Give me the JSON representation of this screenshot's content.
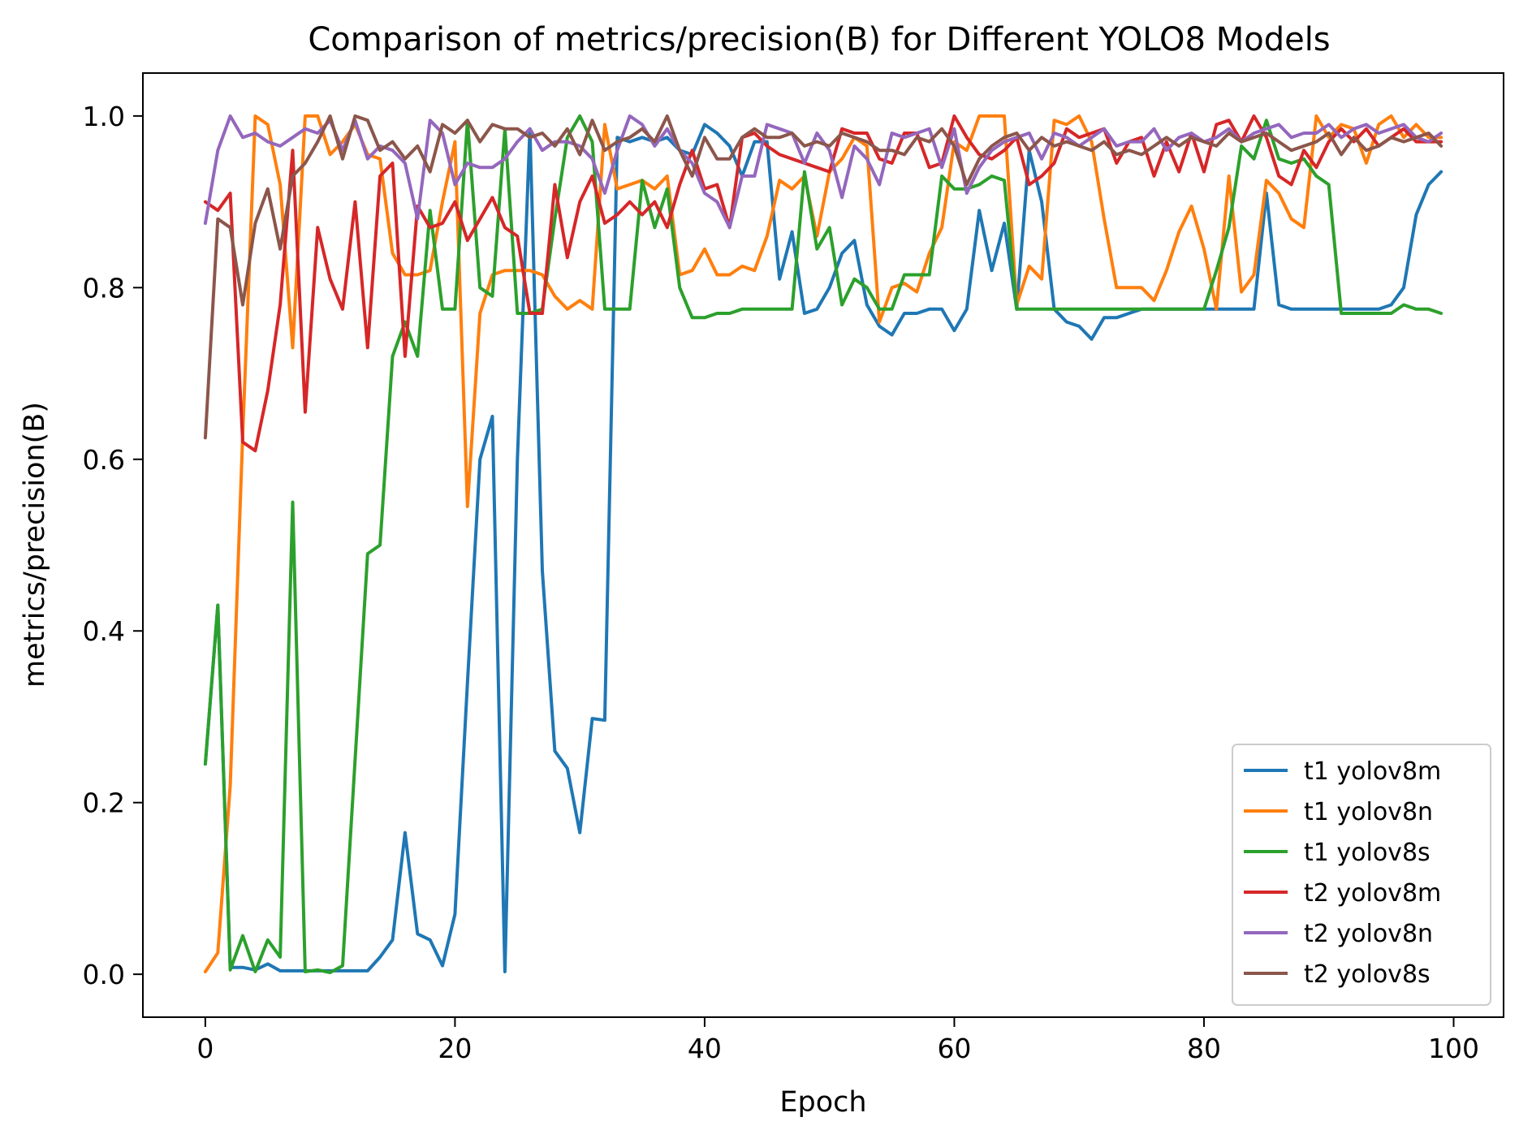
{
  "chart_data": {
    "type": "line",
    "title": "Comparison of metrics/precision(B) for Different YOLO8 Models",
    "xlabel": "Epoch",
    "ylabel": "metrics/precision(B)",
    "xlim": [
      -5,
      104
    ],
    "ylim": [
      -0.05,
      1.05
    ],
    "xticks": [
      0,
      20,
      40,
      60,
      80,
      100
    ],
    "xtick_labels": [
      "0",
      "20",
      "40",
      "60",
      "80",
      "100"
    ],
    "yticks": [
      0.0,
      0.2,
      0.4,
      0.6,
      0.8,
      1.0
    ],
    "ytick_labels": [
      "0.0",
      "0.2",
      "0.4",
      "0.6",
      "0.8",
      "1.0"
    ],
    "grid": false,
    "legend_position": "lower-right",
    "series": [
      {
        "name": "t1 yolov8m",
        "color": "#1f77b4",
        "x": [
          0,
          1,
          2,
          3,
          4,
          5,
          6,
          7,
          8,
          9,
          10,
          11,
          12,
          13,
          14,
          15,
          16,
          17,
          18,
          19,
          20,
          21,
          22,
          23,
          24,
          25,
          26,
          27,
          28,
          29,
          30,
          31,
          32,
          33,
          34,
          35,
          36,
          37,
          38,
          39,
          40,
          41,
          42,
          43,
          44,
          45,
          46,
          47,
          48,
          49,
          50,
          51,
          52,
          53,
          54,
          55,
          56,
          57,
          58,
          59,
          60,
          61,
          62,
          63,
          64,
          65,
          66,
          67,
          68,
          69,
          70,
          71,
          72,
          73,
          74,
          75,
          76,
          77,
          78,
          79,
          80,
          81,
          82,
          83,
          84,
          85,
          86,
          87,
          88,
          89,
          90,
          91,
          92,
          93,
          94,
          95,
          96,
          97,
          98,
          99
        ],
        "y": [
          0.245,
          0.43,
          0.008,
          0.008,
          0.005,
          0.012,
          0.004,
          0.004,
          0.004,
          0.004,
          0.004,
          0.004,
          0.004,
          0.004,
          0.02,
          0.04,
          0.165,
          0.047,
          0.04,
          0.01,
          0.07,
          0.34,
          0.6,
          0.65,
          0.003,
          0.6,
          0.985,
          0.47,
          0.26,
          0.24,
          0.165,
          0.298,
          0.296,
          0.975,
          0.97,
          0.975,
          0.97,
          0.975,
          0.96,
          0.955,
          0.99,
          0.98,
          0.965,
          0.93,
          0.97,
          0.97,
          0.81,
          0.865,
          0.77,
          0.775,
          0.8,
          0.84,
          0.855,
          0.78,
          0.755,
          0.745,
          0.77,
          0.77,
          0.775,
          0.775,
          0.75,
          0.775,
          0.89,
          0.82,
          0.875,
          0.775,
          0.96,
          0.9,
          0.775,
          0.76,
          0.755,
          0.74,
          0.765,
          0.765,
          0.77,
          0.775,
          0.775,
          0.775,
          0.775,
          0.775,
          0.775,
          0.775,
          0.775,
          0.775,
          0.775,
          0.91,
          0.78,
          0.775,
          0.775,
          0.775,
          0.775,
          0.775,
          0.775,
          0.775,
          0.775,
          0.78,
          0.8,
          0.885,
          0.92,
          0.935
        ]
      },
      {
        "name": "t1 yolov8n",
        "color": "#ff7f0e",
        "x": [
          0,
          1,
          2,
          3,
          4,
          5,
          6,
          7,
          8,
          9,
          10,
          11,
          12,
          13,
          14,
          15,
          16,
          17,
          18,
          19,
          20,
          21,
          22,
          23,
          24,
          25,
          26,
          27,
          28,
          29,
          30,
          31,
          32,
          33,
          34,
          35,
          36,
          37,
          38,
          39,
          40,
          41,
          42,
          43,
          44,
          45,
          46,
          47,
          48,
          49,
          50,
          51,
          52,
          53,
          54,
          55,
          56,
          57,
          58,
          59,
          60,
          61,
          62,
          63,
          64,
          65,
          66,
          67,
          68,
          69,
          70,
          71,
          72,
          73,
          74,
          75,
          76,
          77,
          78,
          79,
          80,
          81,
          82,
          83,
          84,
          85,
          86,
          87,
          88,
          89,
          90,
          91,
          92,
          93,
          94,
          95,
          96,
          97,
          98,
          99
        ],
        "y": [
          0.003,
          0.025,
          0.22,
          0.63,
          1.0,
          0.99,
          0.92,
          0.73,
          1.0,
          1.0,
          0.955,
          0.97,
          0.99,
          0.955,
          0.95,
          0.84,
          0.815,
          0.815,
          0.82,
          0.9,
          0.97,
          0.545,
          0.77,
          0.815,
          0.82,
          0.82,
          0.82,
          0.815,
          0.79,
          0.775,
          0.785,
          0.775,
          0.99,
          0.915,
          0.92,
          0.925,
          0.915,
          0.93,
          0.815,
          0.82,
          0.845,
          0.815,
          0.815,
          0.825,
          0.82,
          0.86,
          0.925,
          0.915,
          0.93,
          0.86,
          0.935,
          0.95,
          0.975,
          0.965,
          0.76,
          0.8,
          0.805,
          0.795,
          0.84,
          0.87,
          0.97,
          0.96,
          1.0,
          1.0,
          1.0,
          0.78,
          0.825,
          0.81,
          0.995,
          0.99,
          1.0,
          0.97,
          0.88,
          0.8,
          0.8,
          0.8,
          0.785,
          0.82,
          0.865,
          0.895,
          0.845,
          0.775,
          0.93,
          0.795,
          0.815,
          0.925,
          0.91,
          0.88,
          0.87,
          1.0,
          0.975,
          0.99,
          0.985,
          0.945,
          0.99,
          1.0,
          0.975,
          0.99,
          0.975,
          0.975
        ]
      },
      {
        "name": "t1 yolov8s",
        "color": "#2ca02c",
        "x": [
          0,
          1,
          2,
          3,
          4,
          5,
          6,
          7,
          8,
          9,
          10,
          11,
          12,
          13,
          14,
          15,
          16,
          17,
          18,
          19,
          20,
          21,
          22,
          23,
          24,
          25,
          26,
          27,
          28,
          29,
          30,
          31,
          32,
          33,
          34,
          35,
          36,
          37,
          38,
          39,
          40,
          41,
          42,
          43,
          44,
          45,
          46,
          47,
          48,
          49,
          50,
          51,
          52,
          53,
          54,
          55,
          56,
          57,
          58,
          59,
          60,
          61,
          62,
          63,
          64,
          65,
          66,
          67,
          68,
          69,
          70,
          71,
          72,
          73,
          74,
          75,
          76,
          77,
          78,
          79,
          80,
          81,
          82,
          83,
          84,
          85,
          86,
          87,
          88,
          89,
          90,
          91,
          92,
          93,
          94,
          95,
          96,
          97,
          98,
          99
        ],
        "y": [
          0.245,
          0.43,
          0.005,
          0.045,
          0.003,
          0.04,
          0.02,
          0.55,
          0.003,
          0.005,
          0.002,
          0.01,
          0.25,
          0.49,
          0.5,
          0.72,
          0.76,
          0.72,
          0.89,
          0.775,
          0.775,
          0.995,
          0.8,
          0.79,
          0.985,
          0.77,
          0.77,
          0.775,
          0.88,
          0.975,
          1.0,
          0.97,
          0.775,
          0.775,
          0.775,
          0.925,
          0.87,
          0.915,
          0.8,
          0.765,
          0.765,
          0.77,
          0.77,
          0.775,
          0.775,
          0.775,
          0.775,
          0.775,
          0.935,
          0.845,
          0.87,
          0.78,
          0.81,
          0.8,
          0.775,
          0.775,
          0.815,
          0.815,
          0.815,
          0.93,
          0.915,
          0.915,
          0.92,
          0.93,
          0.925,
          0.775,
          0.775,
          0.775,
          0.775,
          0.775,
          0.775,
          0.775,
          0.775,
          0.775,
          0.775,
          0.775,
          0.775,
          0.775,
          0.775,
          0.775,
          0.775,
          0.82,
          0.87,
          0.965,
          0.95,
          0.995,
          0.95,
          0.945,
          0.95,
          0.93,
          0.92,
          0.77,
          0.77,
          0.77,
          0.77,
          0.77,
          0.78,
          0.775,
          0.775,
          0.77
        ]
      },
      {
        "name": "t2 yolov8m",
        "color": "#d62728",
        "x": [
          0,
          1,
          2,
          3,
          4,
          5,
          6,
          7,
          8,
          9,
          10,
          11,
          12,
          13,
          14,
          15,
          16,
          17,
          18,
          19,
          20,
          21,
          22,
          23,
          24,
          25,
          26,
          27,
          28,
          29,
          30,
          31,
          32,
          33,
          34,
          35,
          36,
          37,
          38,
          39,
          40,
          41,
          42,
          43,
          44,
          45,
          46,
          47,
          48,
          49,
          50,
          51,
          52,
          53,
          54,
          55,
          56,
          57,
          58,
          59,
          60,
          61,
          62,
          63,
          64,
          65,
          66,
          67,
          68,
          69,
          70,
          71,
          72,
          73,
          74,
          75,
          76,
          77,
          78,
          79,
          80,
          81,
          82,
          83,
          84,
          85,
          86,
          87,
          88,
          89,
          90,
          91,
          92,
          93,
          94,
          95,
          96,
          97,
          98,
          99
        ],
        "y": [
          0.9,
          0.89,
          0.91,
          0.62,
          0.61,
          0.68,
          0.78,
          0.96,
          0.655,
          0.87,
          0.81,
          0.775,
          0.9,
          0.73,
          0.93,
          0.945,
          0.72,
          0.895,
          0.87,
          0.875,
          0.9,
          0.855,
          0.88,
          0.905,
          0.87,
          0.86,
          0.77,
          0.77,
          0.92,
          0.835,
          0.9,
          0.93,
          0.875,
          0.885,
          0.9,
          0.885,
          0.9,
          0.87,
          0.92,
          0.96,
          0.915,
          0.92,
          0.87,
          0.975,
          0.98,
          0.965,
          0.955,
          0.95,
          0.945,
          0.94,
          0.935,
          0.985,
          0.98,
          0.98,
          0.95,
          0.945,
          0.98,
          0.98,
          0.94,
          0.945,
          1.0,
          0.975,
          0.955,
          0.95,
          0.96,
          0.975,
          0.92,
          0.93,
          0.945,
          0.985,
          0.975,
          0.98,
          0.985,
          0.945,
          0.97,
          0.975,
          0.93,
          0.97,
          0.935,
          0.98,
          0.935,
          0.99,
          0.995,
          0.97,
          1.0,
          0.975,
          0.93,
          0.92,
          0.96,
          0.94,
          0.97,
          0.985,
          0.97,
          0.985,
          0.965,
          0.975,
          0.985,
          0.97,
          0.97,
          0.97
        ]
      },
      {
        "name": "t2 yolov8n",
        "color": "#9467bd",
        "x": [
          0,
          1,
          2,
          3,
          4,
          5,
          6,
          7,
          8,
          9,
          10,
          11,
          12,
          13,
          14,
          15,
          16,
          17,
          18,
          19,
          20,
          21,
          22,
          23,
          24,
          25,
          26,
          27,
          28,
          29,
          30,
          31,
          32,
          33,
          34,
          35,
          36,
          37,
          38,
          39,
          40,
          41,
          42,
          43,
          44,
          45,
          46,
          47,
          48,
          49,
          50,
          51,
          52,
          53,
          54,
          55,
          56,
          57,
          58,
          59,
          60,
          61,
          62,
          63,
          64,
          65,
          66,
          67,
          68,
          69,
          70,
          71,
          72,
          73,
          74,
          75,
          76,
          77,
          78,
          79,
          80,
          81,
          82,
          83,
          84,
          85,
          86,
          87,
          88,
          89,
          90,
          91,
          92,
          93,
          94,
          95,
          96,
          97,
          98,
          99
        ],
        "y": [
          0.875,
          0.96,
          1.0,
          0.975,
          0.98,
          0.97,
          0.965,
          0.975,
          0.985,
          0.98,
          0.995,
          0.96,
          0.995,
          0.95,
          0.965,
          0.96,
          0.945,
          0.88,
          0.995,
          0.98,
          0.92,
          0.945,
          0.94,
          0.94,
          0.95,
          0.97,
          0.985,
          0.96,
          0.97,
          0.97,
          0.965,
          0.95,
          0.91,
          0.96,
          1.0,
          0.99,
          0.965,
          0.985,
          0.96,
          0.945,
          0.91,
          0.9,
          0.87,
          0.93,
          0.93,
          0.99,
          0.985,
          0.98,
          0.945,
          0.98,
          0.96,
          0.905,
          0.965,
          0.95,
          0.92,
          0.98,
          0.975,
          0.98,
          0.985,
          0.94,
          0.985,
          0.91,
          0.94,
          0.96,
          0.97,
          0.975,
          0.98,
          0.95,
          0.98,
          0.975,
          0.965,
          0.975,
          0.985,
          0.965,
          0.97,
          0.97,
          0.985,
          0.96,
          0.975,
          0.98,
          0.97,
          0.975,
          0.985,
          0.97,
          0.98,
          0.985,
          0.99,
          0.975,
          0.98,
          0.98,
          0.99,
          0.975,
          0.985,
          0.99,
          0.98,
          0.985,
          0.99,
          0.975,
          0.97,
          0.98
        ]
      },
      {
        "name": "t2 yolov8s",
        "color": "#8c564b",
        "x": [
          0,
          1,
          2,
          3,
          4,
          5,
          6,
          7,
          8,
          9,
          10,
          11,
          12,
          13,
          14,
          15,
          16,
          17,
          18,
          19,
          20,
          21,
          22,
          23,
          24,
          25,
          26,
          27,
          28,
          29,
          30,
          31,
          32,
          33,
          34,
          35,
          36,
          37,
          38,
          39,
          40,
          41,
          42,
          43,
          44,
          45,
          46,
          47,
          48,
          49,
          50,
          51,
          52,
          53,
          54,
          55,
          56,
          57,
          58,
          59,
          60,
          61,
          62,
          63,
          64,
          65,
          66,
          67,
          68,
          69,
          70,
          71,
          72,
          73,
          74,
          75,
          76,
          77,
          78,
          79,
          80,
          81,
          82,
          83,
          84,
          85,
          86,
          87,
          88,
          89,
          90,
          91,
          92,
          93,
          94,
          95,
          96,
          97,
          98,
          99
        ],
        "y": [
          0.625,
          0.88,
          0.87,
          0.78,
          0.875,
          0.915,
          0.845,
          0.93,
          0.945,
          0.97,
          1.0,
          0.95,
          1.0,
          0.995,
          0.96,
          0.97,
          0.95,
          0.965,
          0.935,
          0.99,
          0.98,
          0.995,
          0.97,
          0.99,
          0.985,
          0.985,
          0.975,
          0.98,
          0.965,
          0.985,
          0.955,
          0.995,
          0.96,
          0.97,
          0.975,
          0.985,
          0.97,
          1.0,
          0.96,
          0.93,
          0.975,
          0.95,
          0.95,
          0.975,
          0.985,
          0.975,
          0.975,
          0.98,
          0.965,
          0.97,
          0.965,
          0.98,
          0.975,
          0.97,
          0.96,
          0.96,
          0.955,
          0.975,
          0.97,
          0.985,
          0.965,
          0.92,
          0.95,
          0.965,
          0.975,
          0.98,
          0.96,
          0.975,
          0.965,
          0.97,
          0.965,
          0.96,
          0.97,
          0.955,
          0.96,
          0.955,
          0.965,
          0.975,
          0.965,
          0.975,
          0.97,
          0.965,
          0.98,
          0.97,
          0.975,
          0.98,
          0.97,
          0.96,
          0.965,
          0.97,
          0.98,
          0.955,
          0.975,
          0.96,
          0.965,
          0.975,
          0.97,
          0.975,
          0.98,
          0.965
        ]
      }
    ]
  }
}
